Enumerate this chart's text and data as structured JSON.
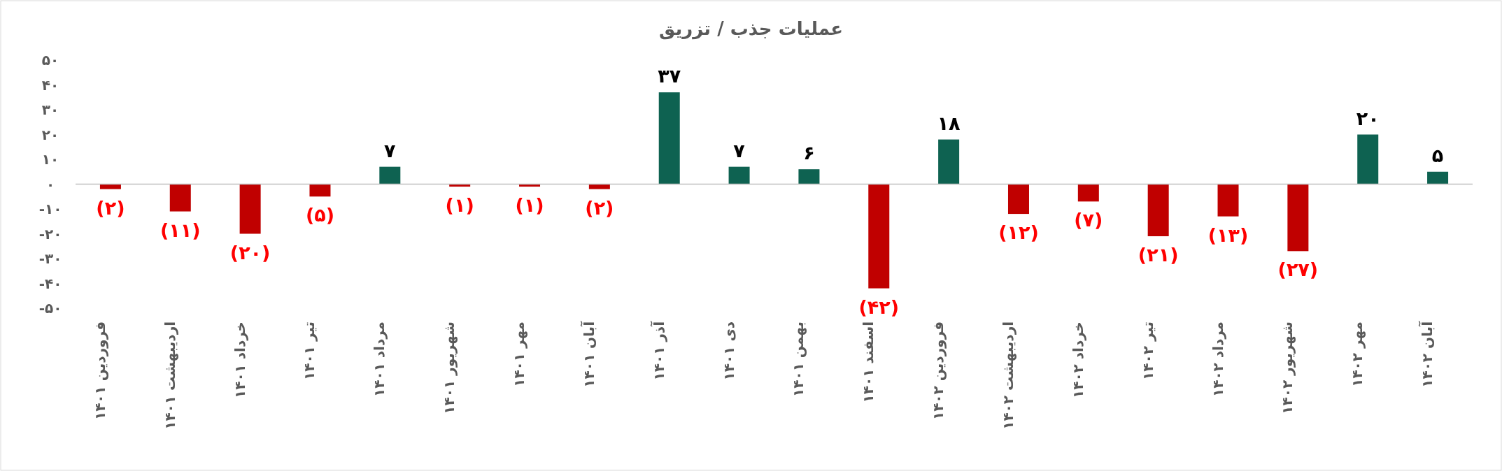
{
  "chart_data": {
    "type": "bar",
    "title": "عملیات جذب / تزریق",
    "categories": [
      "فروردین ۱۴۰۱",
      "اردیبهشت ۱۴۰۱",
      "خرداد ۱۴۰۱",
      "تیر ۱۴۰۱",
      "مرداد ۱۴۰۱",
      "شهریور ۱۴۰۱",
      "مهر ۱۴۰۱",
      "آبان ۱۴۰۱",
      "آذر ۱۴۰۱",
      "دی ۱۴۰۱",
      "بهمن ۱۴۰۱",
      "اسفند ۱۴۰۱",
      "فروردین ۱۴۰۲",
      "اردیبهشت ۱۴۰۲",
      "خرداد ۱۴۰۲",
      "تیر ۱۴۰۲",
      "مرداد ۱۴۰۲",
      "شهریور ۱۴۰۲",
      "مهر ۱۴۰۲",
      "آبان ۱۴۰۲"
    ],
    "values": [
      -2,
      -11,
      -20,
      -5,
      7,
      -1,
      -1,
      -2,
      37,
      7,
      6,
      -42,
      18,
      -12,
      -7,
      -21,
      -13,
      -27,
      20,
      5
    ],
    "colors": [
      "#c00000",
      "#c00000",
      "#c00000",
      "#c00000",
      "#0e6251",
      "#c00000",
      "#c00000",
      "#c00000",
      "#0e6251",
      "#0e6251",
      "#0e6251",
      "#c00000",
      "#0e6251",
      "#c00000",
      "#c00000",
      "#c00000",
      "#c00000",
      "#c00000",
      "#0e6251",
      "#0e6251"
    ],
    "value_labels": [
      "(۲)",
      "(۱۱)",
      "(۲۰)",
      "(۵)",
      "۷",
      "(۱)",
      "(۱)",
      "(۲)",
      "۳۷",
      "۷",
      "۶",
      "(۴۲)",
      "۱۸",
      "(۱۲)",
      "(۷)",
      "(۲۱)",
      "(۱۳)",
      "(۲۷)",
      "۲۰",
      "۵"
    ],
    "ylim": [
      -50,
      50
    ],
    "yticks": [
      {
        "value": -50,
        "label": "-۵۰"
      },
      {
        "value": -40,
        "label": "-۴۰"
      },
      {
        "value": -30,
        "label": "-۳۰"
      },
      {
        "value": -20,
        "label": "-۲۰"
      },
      {
        "value": -10,
        "label": "-۱۰"
      },
      {
        "value": 0,
        "label": "۰"
      },
      {
        "value": 10,
        "label": "۱۰"
      },
      {
        "value": 20,
        "label": "۲۰"
      },
      {
        "value": 30,
        "label": "۳۰"
      },
      {
        "value": 40,
        "label": "۴۰"
      },
      {
        "value": 50,
        "label": "۵۰"
      }
    ]
  }
}
